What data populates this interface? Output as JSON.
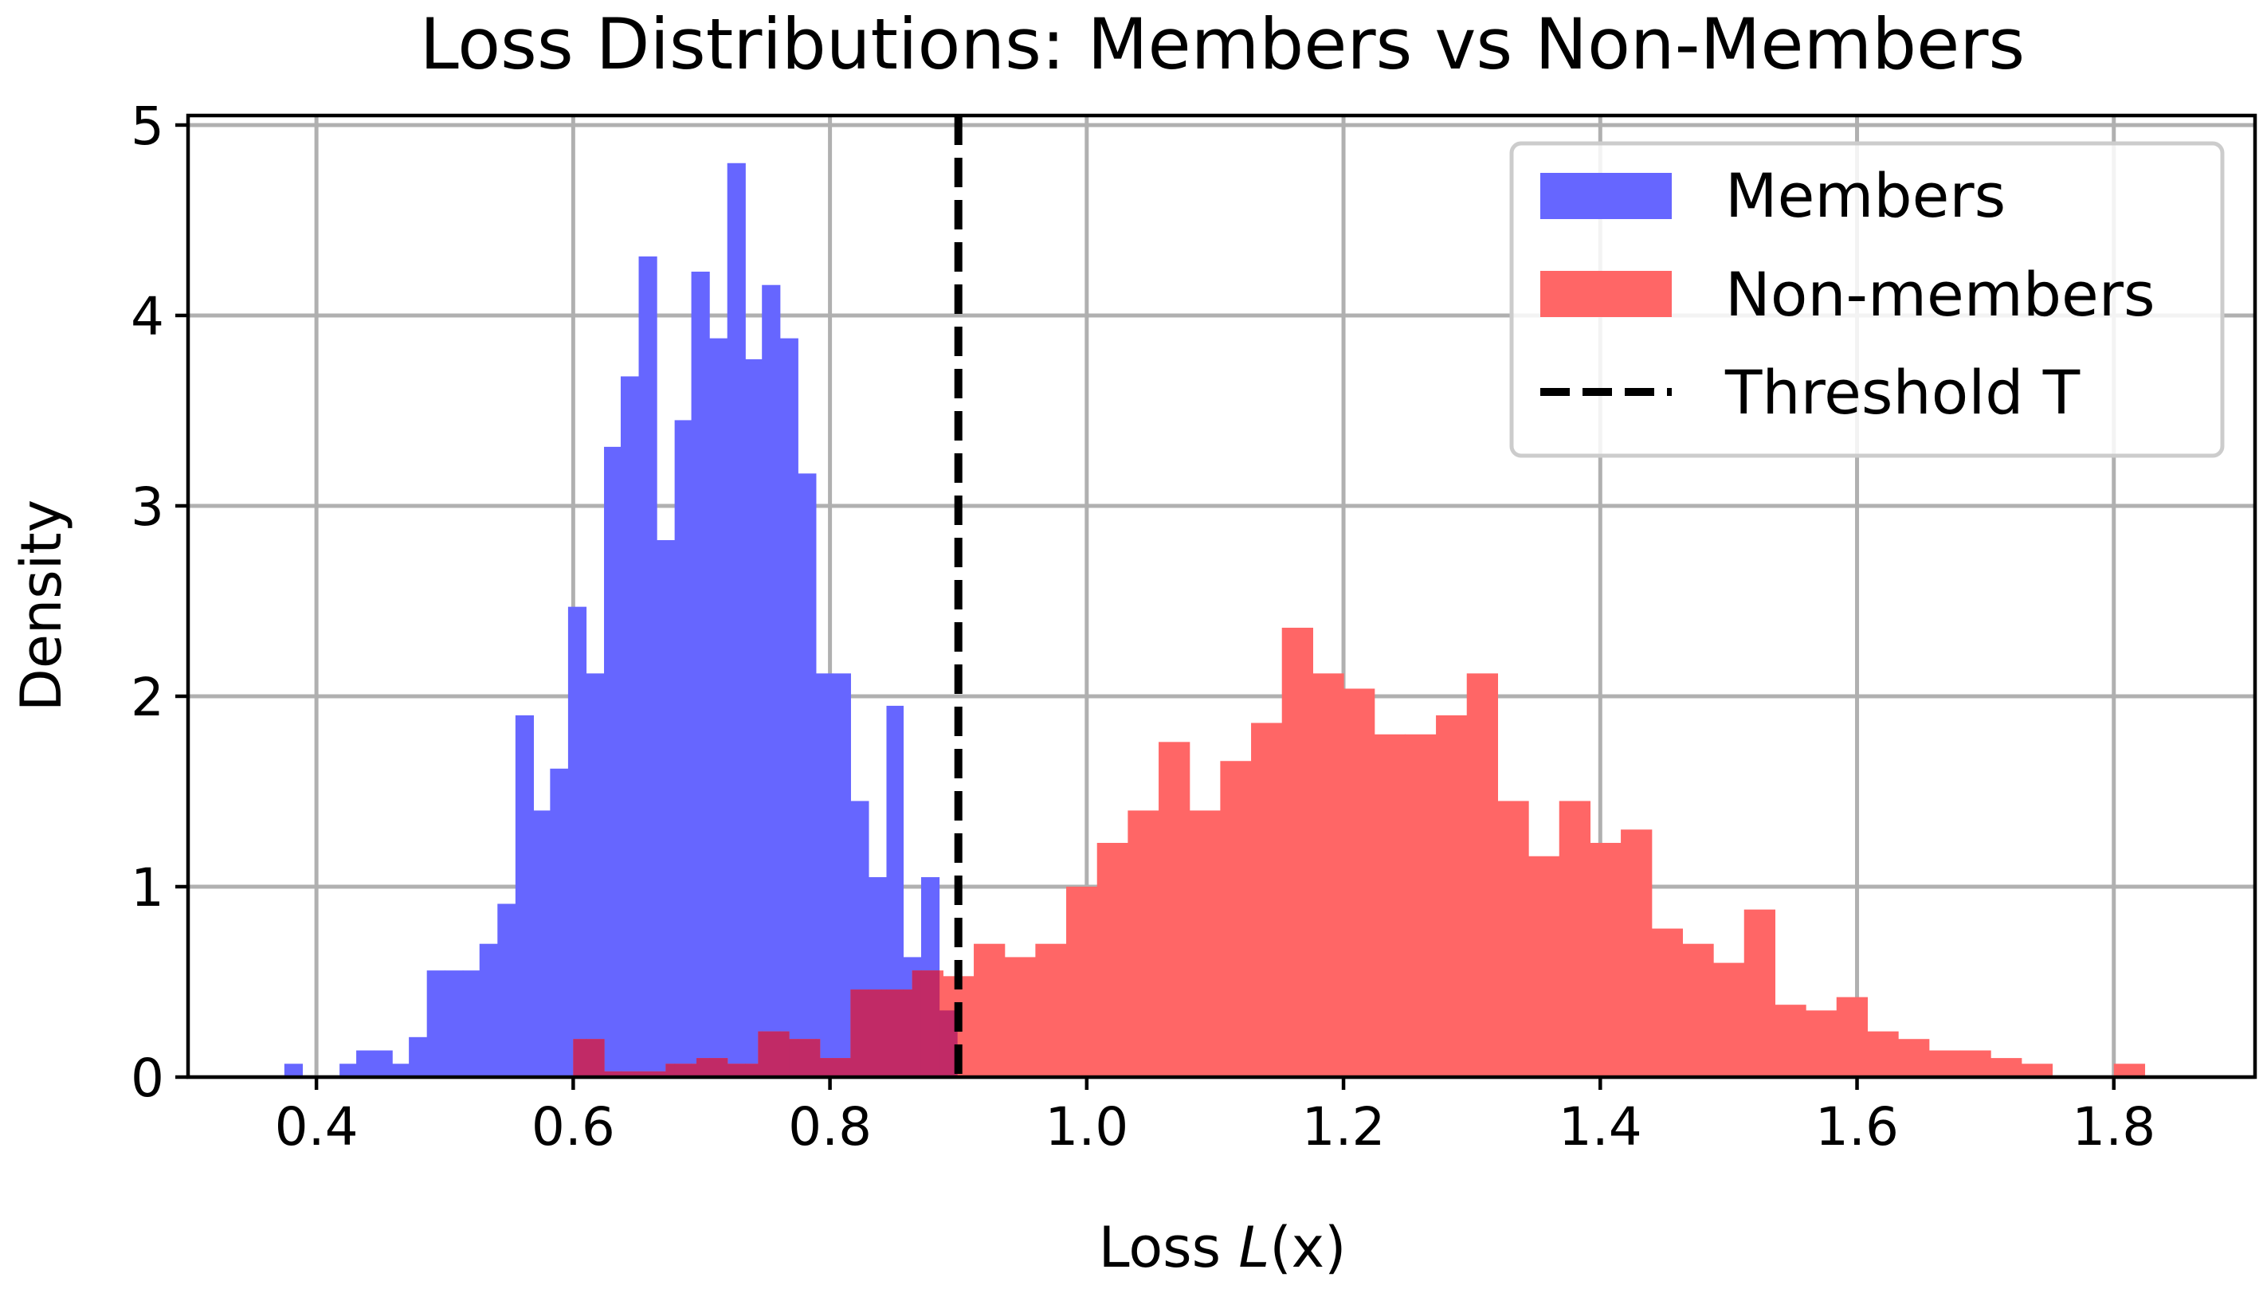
{
  "chart_data": {
    "type": "bar",
    "title": "Loss Distributions: Members vs Non-Members",
    "xlabel_prefix": "Loss ",
    "xlabel_var": "L",
    "xlabel_suffix": "(x)",
    "ylabel": "Density",
    "xlim": [
      0.3,
      1.91
    ],
    "ylim": [
      0,
      5.05
    ],
    "xticks": [
      "0.4",
      "0.6",
      "0.8",
      "1.0",
      "1.2",
      "1.4",
      "1.6",
      "1.8"
    ],
    "xtick_values": [
      0.4,
      0.6,
      0.8,
      1.0,
      1.2,
      1.4,
      1.6,
      1.8
    ],
    "yticks": [
      "0",
      "1",
      "2",
      "3",
      "4",
      "5"
    ],
    "ytick_values": [
      0,
      1,
      2,
      3,
      4,
      5
    ],
    "grid": true,
    "legend_position": "top-right",
    "threshold": 0.9,
    "series": [
      {
        "name": "Members",
        "color": "#6666ff",
        "bins": [
          [
            0.375,
            0.389,
            0.07
          ],
          [
            0.418,
            0.431,
            0.07
          ],
          [
            0.431,
            0.445,
            0.14
          ],
          [
            0.445,
            0.459,
            0.14
          ],
          [
            0.459,
            0.472,
            0.07
          ],
          [
            0.472,
            0.486,
            0.21
          ],
          [
            0.486,
            0.5,
            0.56
          ],
          [
            0.5,
            0.514,
            0.56
          ],
          [
            0.514,
            0.527,
            0.56
          ],
          [
            0.527,
            0.541,
            0.7
          ],
          [
            0.541,
            0.555,
            0.91
          ],
          [
            0.555,
            0.569,
            1.9
          ],
          [
            0.569,
            0.582,
            1.4
          ],
          [
            0.582,
            0.596,
            1.62
          ],
          [
            0.596,
            0.61,
            2.47
          ],
          [
            0.61,
            0.624,
            2.12
          ],
          [
            0.624,
            0.637,
            3.31
          ],
          [
            0.637,
            0.651,
            3.68
          ],
          [
            0.651,
            0.665,
            4.31
          ],
          [
            0.665,
            0.679,
            2.82
          ],
          [
            0.679,
            0.692,
            3.45
          ],
          [
            0.692,
            0.706,
            4.23
          ],
          [
            0.706,
            0.72,
            3.88
          ],
          [
            0.72,
            0.734,
            4.8
          ],
          [
            0.734,
            0.747,
            3.77
          ],
          [
            0.747,
            0.761,
            4.16
          ],
          [
            0.761,
            0.775,
            3.88
          ],
          [
            0.775,
            0.789,
            3.17
          ],
          [
            0.789,
            0.802,
            2.12
          ],
          [
            0.802,
            0.816,
            2.12
          ],
          [
            0.816,
            0.83,
            1.45
          ],
          [
            0.83,
            0.844,
            1.05
          ],
          [
            0.844,
            0.857,
            1.95
          ],
          [
            0.857,
            0.871,
            0.63
          ],
          [
            0.871,
            0.885,
            1.05
          ],
          [
            0.885,
            0.899,
            0.35
          ]
        ]
      },
      {
        "name": "Non-members",
        "color": "#ff6666",
        "bins": [
          [
            0.6,
            0.624,
            0.2
          ],
          [
            0.624,
            0.648,
            0.03
          ],
          [
            0.648,
            0.672,
            0.03
          ],
          [
            0.672,
            0.696,
            0.07
          ],
          [
            0.696,
            0.72,
            0.1
          ],
          [
            0.72,
            0.744,
            0.07
          ],
          [
            0.744,
            0.768,
            0.24
          ],
          [
            0.768,
            0.792,
            0.2
          ],
          [
            0.792,
            0.816,
            0.1
          ],
          [
            0.816,
            0.84,
            0.46
          ],
          [
            0.84,
            0.864,
            0.46
          ],
          [
            0.864,
            0.888,
            0.56
          ],
          [
            0.888,
            0.912,
            0.53
          ],
          [
            0.912,
            0.936,
            0.7
          ],
          [
            0.936,
            0.96,
            0.63
          ],
          [
            0.96,
            0.984,
            0.7
          ],
          [
            0.984,
            1.008,
            1.0
          ],
          [
            1.008,
            1.032,
            1.23
          ],
          [
            1.032,
            1.056,
            1.4
          ],
          [
            1.056,
            1.08,
            1.76
          ],
          [
            1.08,
            1.104,
            1.4
          ],
          [
            1.104,
            1.128,
            1.66
          ],
          [
            1.128,
            1.152,
            1.86
          ],
          [
            1.152,
            1.176,
            2.36
          ],
          [
            1.176,
            1.2,
            2.12
          ],
          [
            1.2,
            1.224,
            2.04
          ],
          [
            1.224,
            1.248,
            1.8
          ],
          [
            1.248,
            1.272,
            1.8
          ],
          [
            1.272,
            1.296,
            1.9
          ],
          [
            1.296,
            1.32,
            2.12
          ],
          [
            1.32,
            1.344,
            1.45
          ],
          [
            1.344,
            1.368,
            1.16
          ],
          [
            1.368,
            1.392,
            1.45
          ],
          [
            1.392,
            1.416,
            1.23
          ],
          [
            1.416,
            1.44,
            1.3
          ],
          [
            1.44,
            1.464,
            0.78
          ],
          [
            1.464,
            1.488,
            0.7
          ],
          [
            1.488,
            1.512,
            0.6
          ],
          [
            1.512,
            1.536,
            0.88
          ],
          [
            1.536,
            1.56,
            0.38
          ],
          [
            1.56,
            1.584,
            0.35
          ],
          [
            1.584,
            1.608,
            0.42
          ],
          [
            1.608,
            1.632,
            0.24
          ],
          [
            1.632,
            1.656,
            0.2
          ],
          [
            1.656,
            1.68,
            0.14
          ],
          [
            1.68,
            1.704,
            0.14
          ],
          [
            1.704,
            1.728,
            0.1
          ],
          [
            1.728,
            1.752,
            0.07
          ],
          [
            1.8,
            1.824,
            0.07
          ]
        ]
      }
    ],
    "overlap_color": "#c12a66",
    "threshold_label": "Threshold T"
  }
}
